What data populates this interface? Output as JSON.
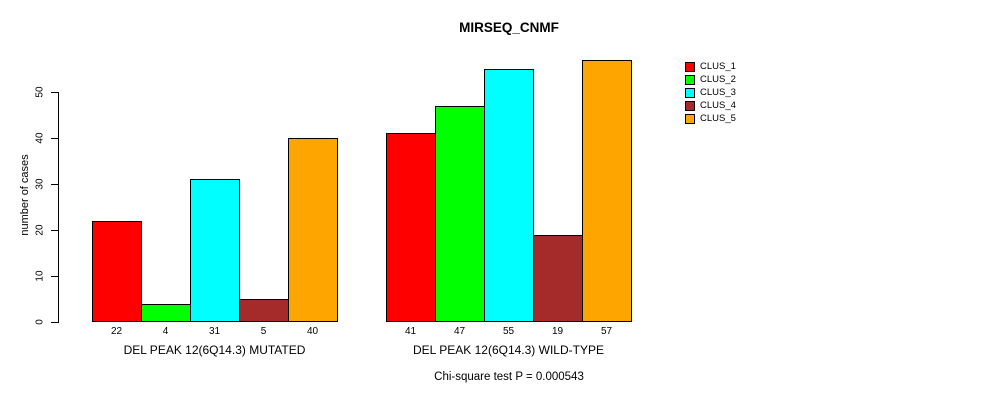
{
  "chart_data": {
    "type": "bar",
    "title": "MIRSEQ_CNMF",
    "subtitle": "Chi-square test P = 0.000543",
    "xlabel": "",
    "ylabel": "number of cases",
    "ylim": [
      0,
      57
    ],
    "yticks": [
      0,
      10,
      20,
      30,
      40,
      50
    ],
    "grid": false,
    "bar_value_labels": true,
    "legend_position": "top-right",
    "categories": [
      "DEL PEAK 12(6Q14.3) MUTATED",
      "DEL PEAK 12(6Q14.3) WILD-TYPE"
    ],
    "series": [
      {
        "name": "CLUS_1",
        "color": "#FF0000",
        "values": [
          22,
          41
        ]
      },
      {
        "name": "CLUS_2",
        "color": "#00FF00",
        "values": [
          4,
          47
        ]
      },
      {
        "name": "CLUS_3",
        "color": "#00FFFF",
        "values": [
          31,
          55
        ]
      },
      {
        "name": "CLUS_4",
        "color": "#A52A2A",
        "values": [
          5,
          19
        ]
      },
      {
        "name": "CLUS_5",
        "color": "#FFA500",
        "values": [
          40,
          57
        ]
      }
    ],
    "bar_border_color": "#000000",
    "text_color": "#000000"
  }
}
